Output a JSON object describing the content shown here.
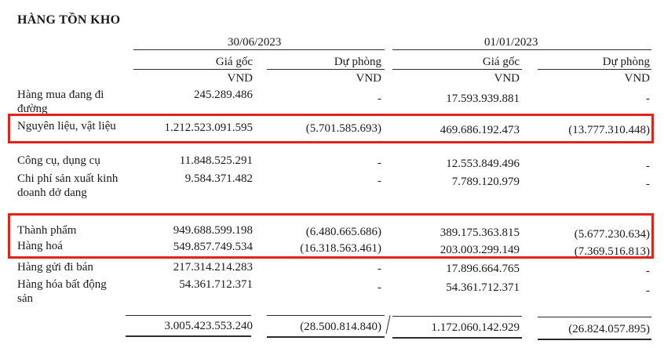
{
  "title": "HÀNG TỒN KHO",
  "periods": [
    {
      "date": "30/06/2023",
      "col_cost": "Giá gốc",
      "col_provision": "Dự phòng",
      "unit": "VND"
    },
    {
      "date": "01/01/2023",
      "col_cost": "Giá gốc",
      "col_provision": "Dự phòng",
      "unit": "VND"
    }
  ],
  "rows": [
    {
      "label1": "Hàng mua đang đi",
      "label2": "đường",
      "v1": "245.289.486",
      "v2": "-",
      "v3": "17.593.939.881",
      "v4": "-"
    },
    {
      "label1": "Nguyên liệu, vật liệu",
      "v1": "1.212.523.091.595",
      "v2": "(5.701.585.693)",
      "v3": "469.686.192.473",
      "v4": "(13.777.310.448)"
    },
    {
      "label1": "Công cụ, dụng cụ",
      "v1": "11.848.525.291",
      "v2": "-",
      "v3": "12.553.849.496",
      "v4": "-"
    },
    {
      "label1": "Chi phí sản xuất kinh",
      "label2": "doanh dở dang",
      "v1": "9.584.371.482",
      "v2": "-",
      "v3": "7.789.120.979",
      "v4": "-"
    },
    {
      "label1": "Thành phẩm",
      "v1": "949.688.599.198",
      "v2": "(6.480.665.686)",
      "v3": "389.175.363.815",
      "v4": "(5.677.230.634)"
    },
    {
      "label1": "Hàng hoá",
      "v1": "549.857.749.534",
      "v2": "(16.318.563.461)",
      "v3": "203.003.299.149",
      "v4": "(7.369.516.813)"
    },
    {
      "label1": "Hàng gửi đi bán",
      "v1": "217.314.214.283",
      "v2": "-",
      "v3": "17.896.664.765",
      "v4": "-"
    },
    {
      "label1": "Hàng hóa bất động",
      "label2": "sản",
      "v1": "54.361.712.371",
      "v2": "-",
      "v3": "54.361.712.371",
      "v4": "-"
    }
  ],
  "total": {
    "v1": "3.005.423.553.240",
    "v2": "(28.500.814.840)",
    "v3": "1.172.060.142.929",
    "v4": "(26.824.057.895)"
  },
  "highlight_color": "#e2231a"
}
